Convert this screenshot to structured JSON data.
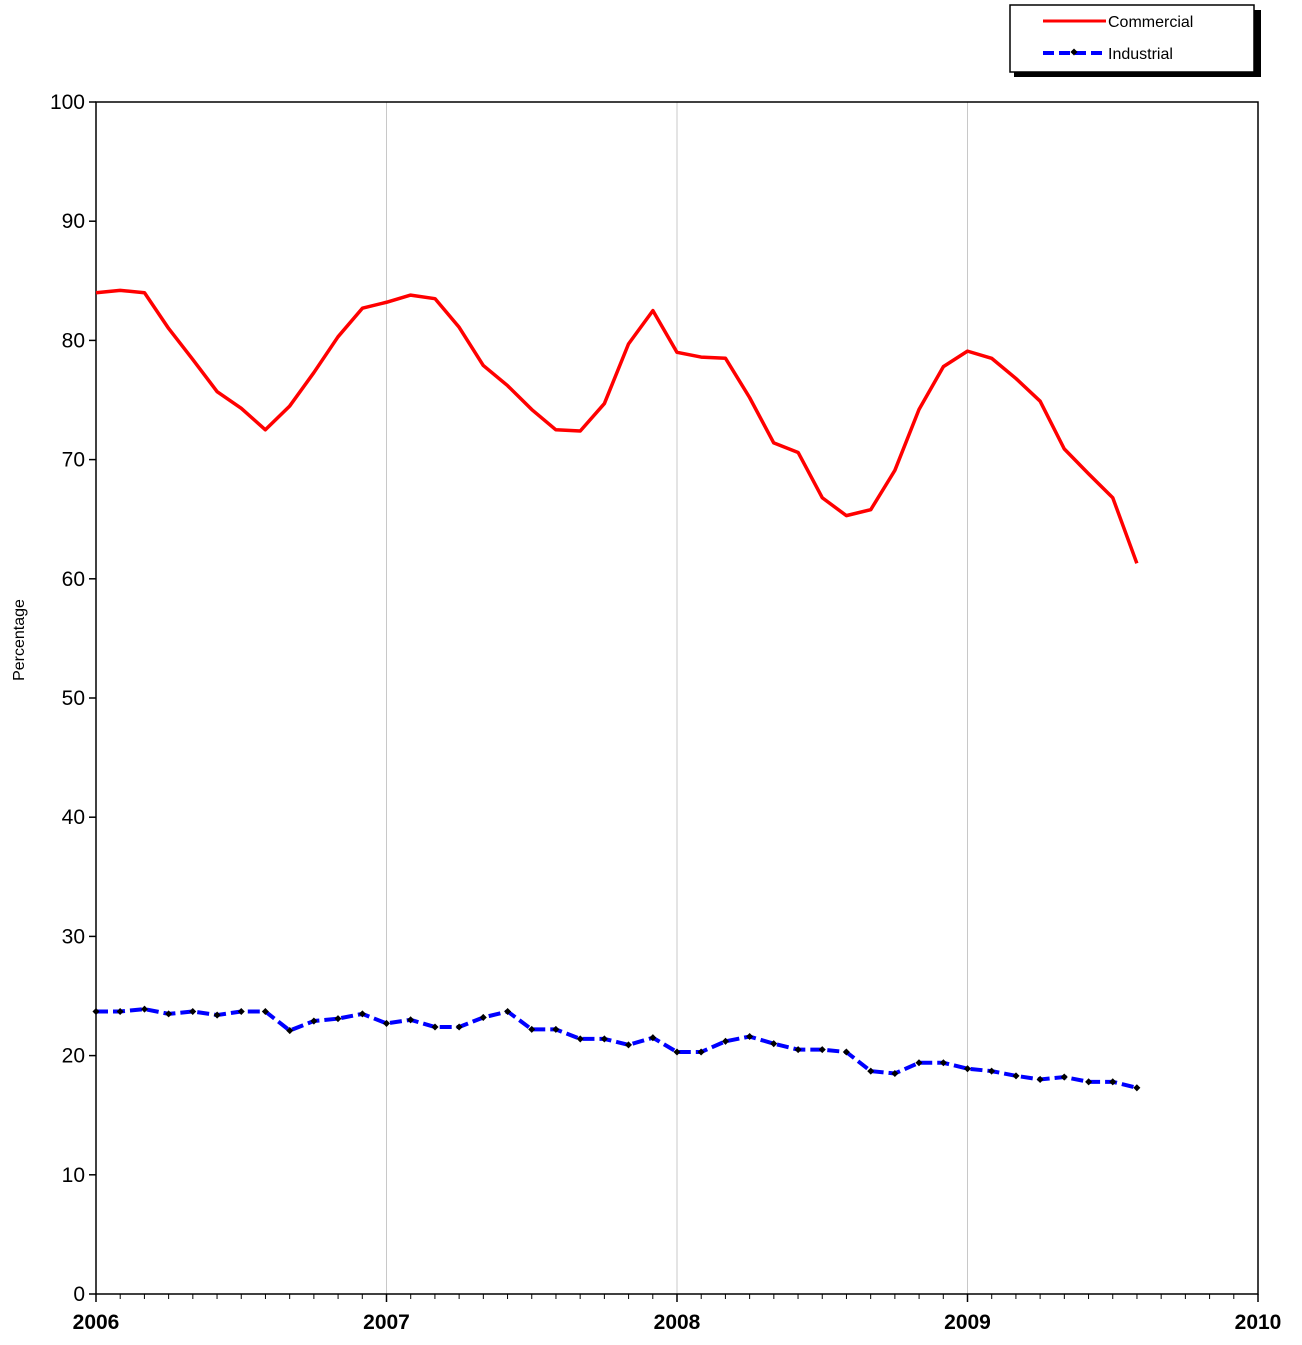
{
  "chart_data": {
    "type": "line",
    "title": "",
    "xlabel": "",
    "ylabel": "Percentage",
    "ylim": [
      0,
      100
    ],
    "xlim": [
      2006,
      2010
    ],
    "yticks": [
      "0",
      "10",
      "20",
      "30",
      "40",
      "50",
      "60",
      "70",
      "80",
      "90",
      "100"
    ],
    "xticks": [
      "2006",
      "2007",
      "2008",
      "2009",
      "2010"
    ],
    "grid": "vertical at years",
    "legend": "top-right",
    "x": [
      2006.0,
      2006.083,
      2006.167,
      2006.25,
      2006.333,
      2006.417,
      2006.5,
      2006.583,
      2006.667,
      2006.75,
      2006.833,
      2006.917,
      2007.0,
      2007.083,
      2007.167,
      2007.25,
      2007.333,
      2007.417,
      2007.5,
      2007.583,
      2007.667,
      2007.75,
      2007.833,
      2007.917,
      2008.0,
      2008.083,
      2008.167,
      2008.25,
      2008.333,
      2008.417,
      2008.5,
      2008.583,
      2008.667,
      2008.75,
      2008.833,
      2008.917,
      2009.0,
      2009.083,
      2009.167,
      2009.25,
      2009.333,
      2009.417,
      2009.5,
      2009.583
    ],
    "series": [
      {
        "name": "Commercial",
        "color": "#ff0000",
        "marker": "none",
        "values": [
          84.0,
          84.2,
          84.0,
          81.0,
          78.4,
          75.7,
          74.3,
          72.5,
          74.5,
          77.3,
          80.3,
          82.7,
          83.2,
          83.8,
          83.5,
          81.1,
          77.9,
          76.2,
          74.2,
          72.5,
          72.4,
          74.7,
          79.7,
          82.5,
          79.0,
          78.6,
          78.5,
          75.2,
          71.4,
          70.6,
          66.8,
          65.3,
          65.8,
          69.1,
          74.2,
          77.8,
          79.1,
          78.5,
          76.8,
          74.9,
          70.9,
          68.8,
          66.8,
          61.3
        ]
      },
      {
        "name": "Industrial",
        "color": "#0000ff",
        "marker": "diamond",
        "values": [
          23.7,
          23.7,
          23.9,
          23.5,
          23.7,
          23.4,
          23.7,
          23.7,
          22.1,
          22.9,
          23.1,
          23.5,
          22.7,
          23.0,
          22.4,
          22.4,
          23.2,
          23.7,
          22.2,
          22.2,
          21.4,
          21.4,
          20.9,
          21.5,
          20.3,
          20.3,
          21.2,
          21.6,
          21.0,
          20.5,
          20.5,
          20.3,
          18.7,
          18.5,
          19.4,
          19.4,
          18.9,
          18.7,
          18.3,
          18.0,
          18.2,
          17.8,
          17.8,
          17.3
        ]
      }
    ]
  }
}
